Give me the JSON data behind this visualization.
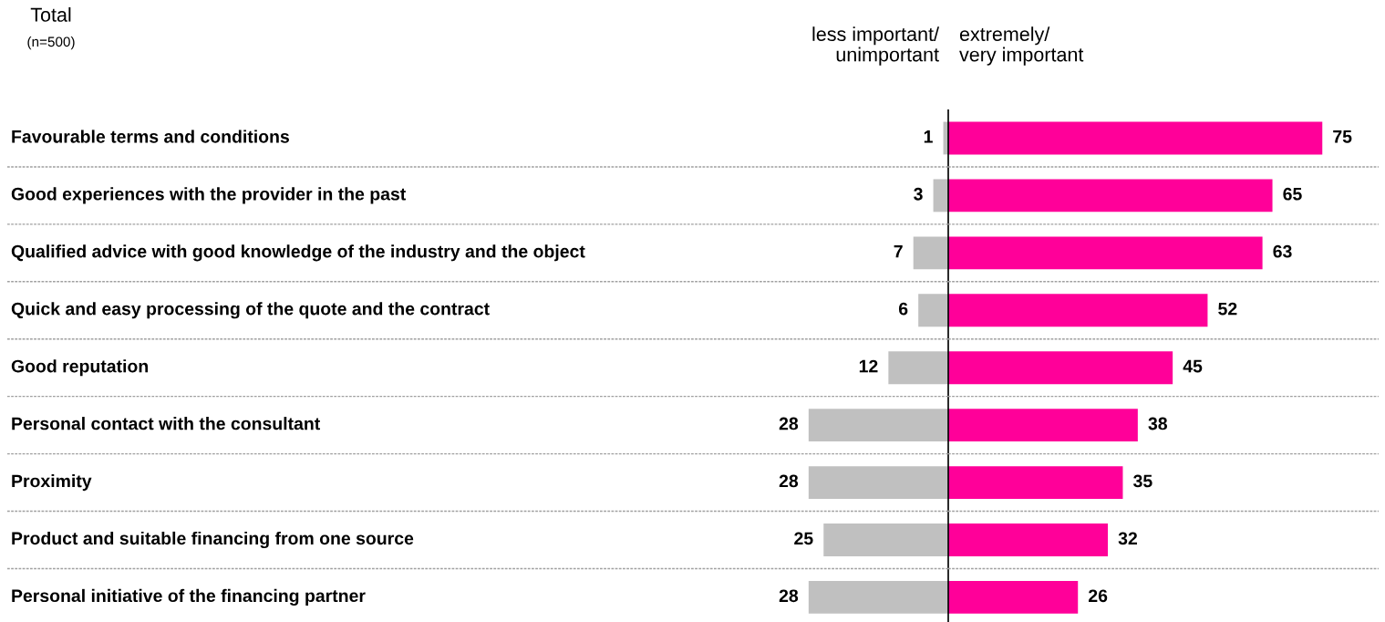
{
  "chart_data": [
    {
      "type": "bar",
      "orientation": "horizontal",
      "title": "Total",
      "subtitle": "(n=500)",
      "xlabel": "less important/\nunimportant",
      "grid": "y",
      "data_labels": true,
      "tick_labels": "y",
      "categories": [
        "Favourable terms and conditions",
        "Good experiences with the provider in the past",
        "Qualified advice with good knowledge of the industry and the object",
        "Quick and easy processing of the quote and the contract",
        "Good reputation",
        "Personal contact with the consultant",
        "Proximity",
        "Product and suitable financing from one source",
        "Personal initiative of the financing partner"
      ],
      "series": [
        {
          "color": "#c0c0c0",
          "values": [
            1,
            3,
            7,
            6,
            12,
            28,
            28,
            25,
            28
          ]
        }
      ]
    },
    {
      "type": "bar",
      "orientation": "horizontal",
      "xlabel": "extremely/\nvery important",
      "grid": "y",
      "data_labels": true,
      "categories": [
        null,
        null,
        null,
        null,
        null,
        null,
        null,
        null,
        null
      ],
      "series": [
        {
          "color": "#ff0099",
          "values": [
            75,
            65,
            63,
            52,
            45,
            38,
            35,
            32,
            26
          ]
        }
      ]
    }
  ]
}
